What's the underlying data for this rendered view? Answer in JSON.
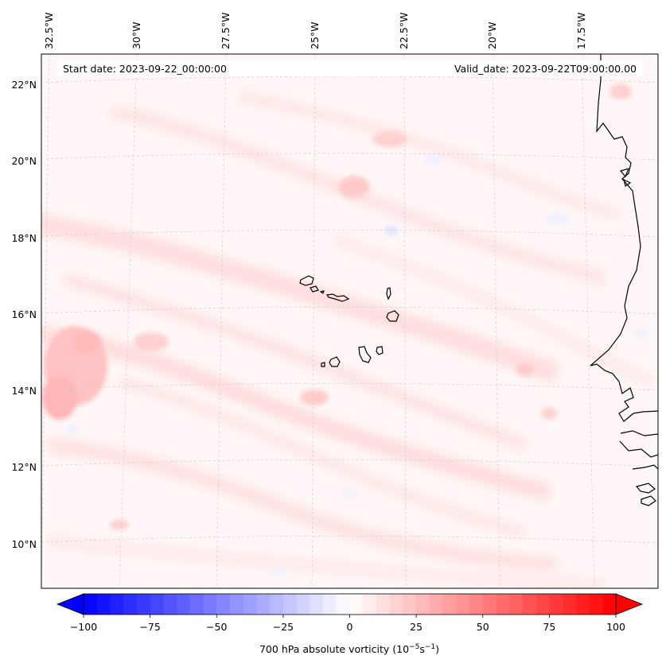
{
  "map": {
    "start_date": "Start date: 2023-09-22_00:00:00",
    "valid_date": "Valid_date: 2023-09-22T09:00:00.00",
    "lon_labels": [
      "32.5°W",
      "30°W",
      "27.5°W",
      "25°W",
      "22.5°W",
      "20°W",
      "17.5°W"
    ],
    "lat_labels": [
      "22°N",
      "20°N",
      "18°N",
      "16°N",
      "14°N",
      "12°N",
      "10°N"
    ],
    "coastline_color": "#000000",
    "gridline_color": "#c8c8c8",
    "islands": [
      "Santo Antão",
      "São Vicente",
      "Santa Luzia",
      "São Nicolau",
      "Sal",
      "Boa Vista",
      "Maio",
      "Santiago",
      "Fogo",
      "Brava"
    ]
  },
  "colorbar": {
    "label": "700 hPa absolute vorticity (10",
    "label_exp1": "−5",
    "label_mid": "s",
    "label_exp2": "−1",
    "label_end": ")",
    "min": -100,
    "max": 100,
    "tick_labels": [
      "−100",
      "−75",
      "−50",
      "−25",
      "0",
      "25",
      "50",
      "75",
      "100"
    ],
    "negative_color": "#0000ff",
    "zero_color": "#ffffff",
    "positive_color": "#ff0000"
  }
}
